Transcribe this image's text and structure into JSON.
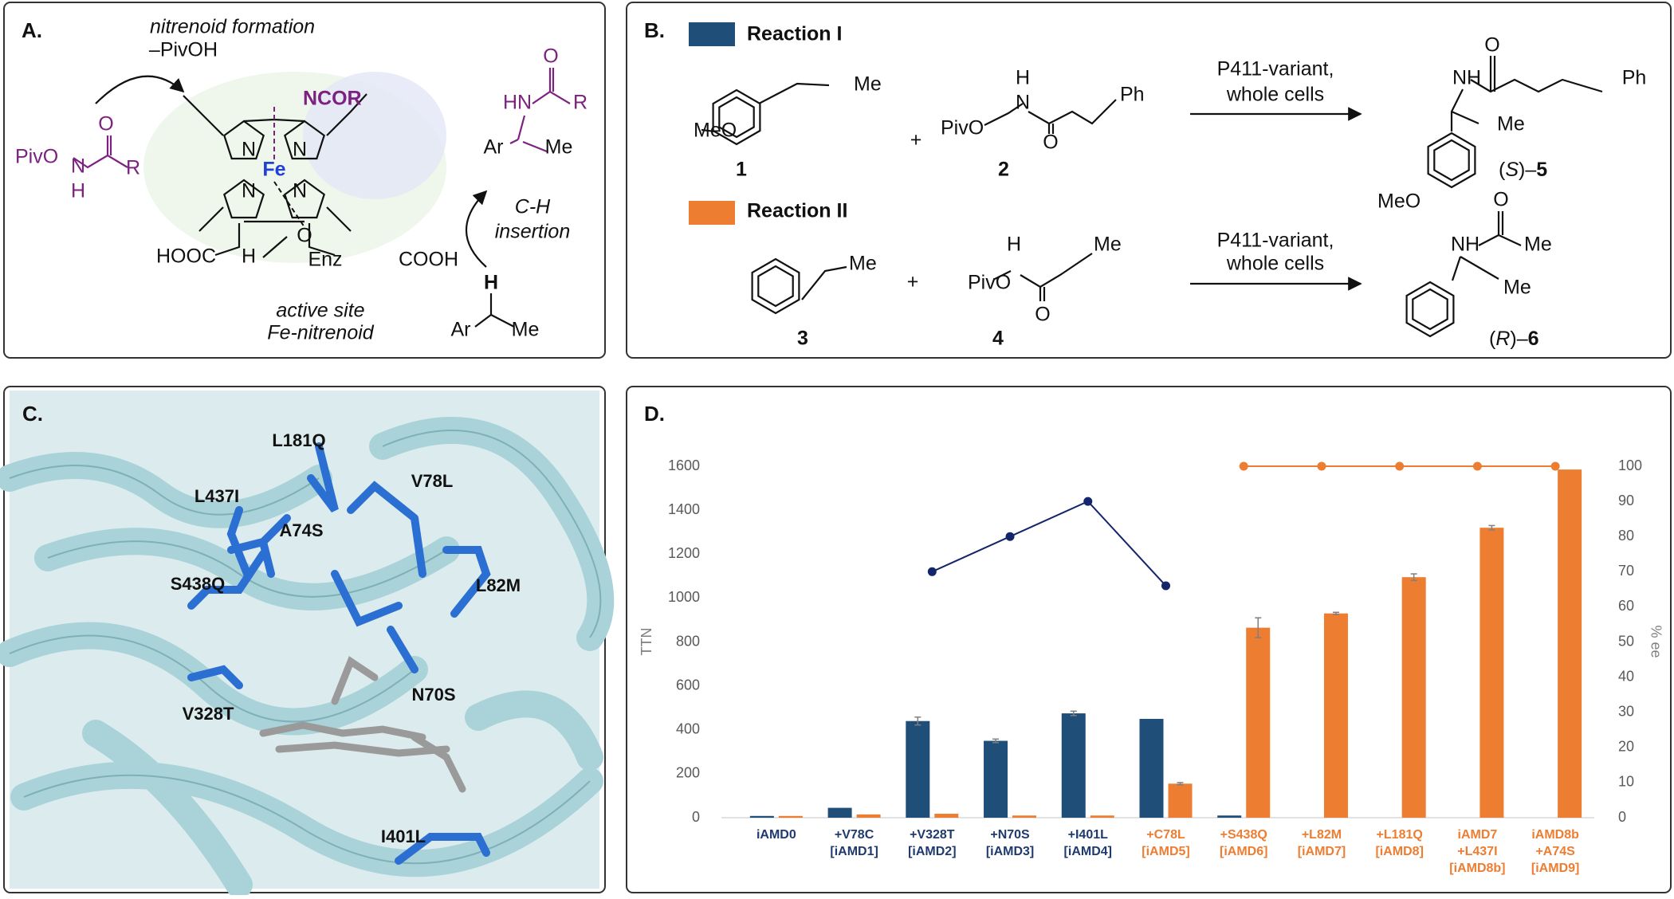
{
  "panel_a": {
    "label": "A.",
    "texts": [
      "nitrenoid formation",
      "–PivOH",
      "PivO",
      "O",
      "N",
      "H",
      "R",
      "NCOR",
      "Fe",
      "N",
      "N",
      "N",
      "N",
      "HOOC",
      "H",
      "O",
      "Enz",
      "COOH",
      "active site",
      "Fe-nitrenoid",
      "O",
      "HN",
      "R",
      "Ar",
      "Me",
      "C-H",
      "insertion",
      "H",
      "Ar",
      "Me"
    ]
  },
  "panel_b": {
    "label": "B.",
    "texts": [
      "Me",
      "MeO",
      "1",
      "+",
      "H",
      "N",
      "PivO",
      "O",
      "Ph",
      "2",
      "P411-variant,",
      "whole cells",
      "O",
      "NH",
      "Ph",
      "Me",
      "MeO",
      "Me",
      "3",
      "+",
      "H",
      "PivO",
      "N",
      "Me",
      "O",
      "4",
      "P411-variant,",
      "whole cells",
      "O",
      "NH",
      "Me",
      "Me"
    ],
    "product_1": [
      "(",
      "S",
      ")–",
      "5"
    ],
    "product_2": [
      "(",
      "R",
      ")–",
      "6"
    ]
  },
  "panel_c": {
    "label": "C.",
    "residues": [
      "L181Q",
      "V78L",
      "L437I",
      "A74S",
      "S438Q",
      "L82M",
      "N70S",
      "V328T",
      "I401L"
    ]
  },
  "panel_d": {
    "label": "D."
  },
  "chart_data": {
    "type": "bar",
    "categories": [
      [
        "iAMD0"
      ],
      [
        "+V78C",
        "[iAMD1]"
      ],
      [
        "+V328T",
        "[iAMD2]"
      ],
      [
        "+N70S",
        "[iAMD3]"
      ],
      [
        "+I401L",
        "[iAMD4]"
      ],
      [
        "+C78L",
        "[iAMD5]"
      ],
      [
        "+S438Q",
        "[iAMD6]"
      ],
      [
        "+L82M",
        "[iAMD7]"
      ],
      [
        "+L181Q",
        "[iAMD8]"
      ],
      [
        "iAMD7",
        "+L437I",
        "[iAMD8b]"
      ],
      [
        "iAMD8b",
        "+A74S",
        "[iAMD9]"
      ]
    ],
    "category_colors": [
      "#1f3a6e",
      "#1f3a6e",
      "#1f3a6e",
      "#1f3a6e",
      "#1f3a6e",
      "#ed7d31",
      "#ed7d31",
      "#ed7d31",
      "#ed7d31",
      "#ed7d31",
      "#ed7d31"
    ],
    "series": [
      {
        "name": "Reaction I",
        "color": "#1f4e79",
        "line_color": "#14266b",
        "values": [
          8,
          45,
          440,
          350,
          475,
          450,
          10,
          null,
          null,
          null,
          null
        ],
        "errors": [
          null,
          null,
          18,
          8,
          10,
          null,
          null,
          null,
          null,
          null,
          null
        ],
        "ee": [
          null,
          null,
          70,
          80,
          90,
          66,
          null,
          null,
          null,
          null,
          null
        ]
      },
      {
        "name": "Reaction II",
        "color": "#ed7d31",
        "line_color": "#ed7d31",
        "values": [
          8,
          15,
          18,
          10,
          10,
          155,
          865,
          930,
          1095,
          1320,
          1585
        ],
        "errors": [
          null,
          null,
          null,
          null,
          null,
          5,
          45,
          5,
          15,
          10,
          null
        ],
        "ee": [
          null,
          null,
          null,
          null,
          null,
          null,
          100,
          100,
          100,
          100,
          100
        ]
      }
    ],
    "y_label": "TTN",
    "y2_label": "% ee",
    "ylim": [
      0,
      1600
    ],
    "yticks": [
      0,
      200,
      400,
      600,
      800,
      1000,
      1200,
      1400,
      1600
    ],
    "y2lim": [
      0,
      100
    ],
    "y2ticks": [
      0,
      10,
      20,
      30,
      40,
      50,
      60,
      70,
      80,
      90,
      100
    ]
  }
}
